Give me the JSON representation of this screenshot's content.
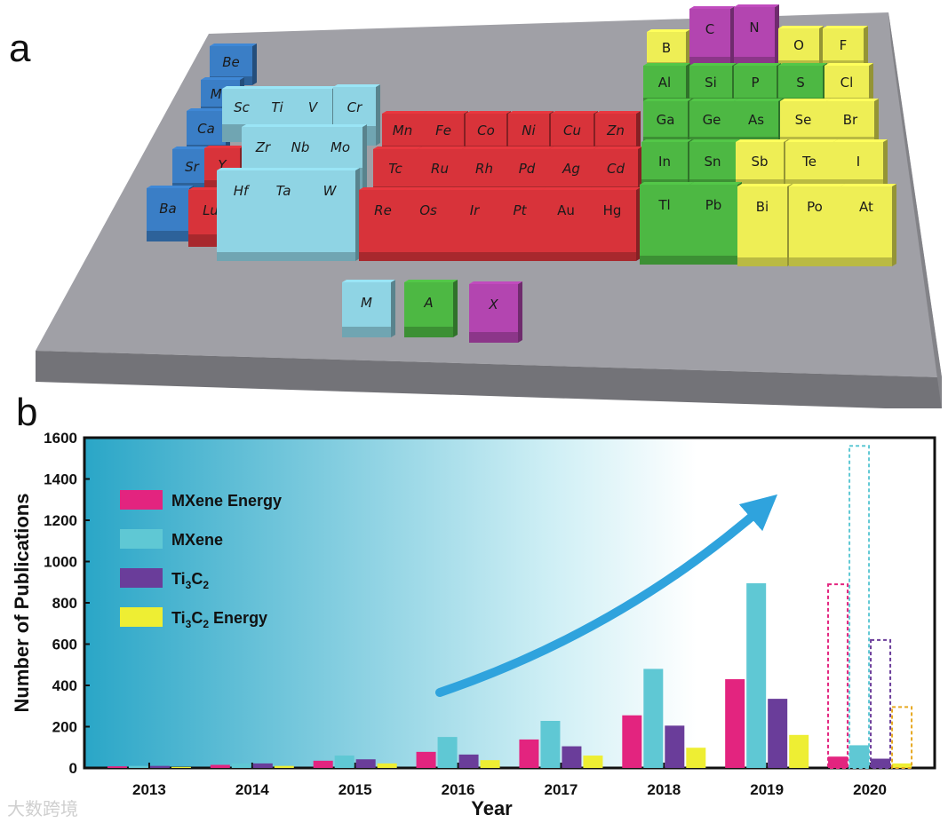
{
  "panel_a": {
    "label": "a",
    "colors": {
      "blue": "#3a7ec6",
      "lightblue": "#8fd4e4",
      "red": "#d8333a",
      "green": "#4db843",
      "yellow": "#eeee55",
      "magenta": "#b345b0",
      "base": "#a0a0a6"
    },
    "elements": [
      {
        "sym": "Be",
        "group": "blue"
      },
      {
        "sym": "Mg",
        "group": "blue"
      },
      {
        "sym": "Ca",
        "group": "blue"
      },
      {
        "sym": "Sr",
        "group": "blue"
      },
      {
        "sym": "Ba",
        "group": "blue"
      },
      {
        "sym": "Y",
        "group": "red"
      },
      {
        "sym": "Lu",
        "group": "red"
      },
      {
        "sym": "Sc",
        "group": "lightblue"
      },
      {
        "sym": "Ti",
        "group": "lightblue"
      },
      {
        "sym": "V",
        "group": "lightblue"
      },
      {
        "sym": "Cr",
        "group": "lightblue"
      },
      {
        "sym": "Zr",
        "group": "lightblue"
      },
      {
        "sym": "Nb",
        "group": "lightblue"
      },
      {
        "sym": "Mo",
        "group": "lightblue"
      },
      {
        "sym": "Hf",
        "group": "lightblue"
      },
      {
        "sym": "Ta",
        "group": "lightblue"
      },
      {
        "sym": "W",
        "group": "lightblue"
      },
      {
        "sym": "Mn",
        "group": "red"
      },
      {
        "sym": "Fe",
        "group": "red"
      },
      {
        "sym": "Co",
        "group": "red"
      },
      {
        "sym": "Ni",
        "group": "red"
      },
      {
        "sym": "Cu",
        "group": "red"
      },
      {
        "sym": "Zn",
        "group": "red"
      },
      {
        "sym": "Tc",
        "group": "red"
      },
      {
        "sym": "Ru",
        "group": "red"
      },
      {
        "sym": "Rh",
        "group": "red"
      },
      {
        "sym": "Pd",
        "group": "red"
      },
      {
        "sym": "Ag",
        "group": "red"
      },
      {
        "sym": "Cd",
        "group": "red"
      },
      {
        "sym": "Re",
        "group": "red"
      },
      {
        "sym": "Os",
        "group": "red"
      },
      {
        "sym": "Ir",
        "group": "red"
      },
      {
        "sym": "Pt",
        "group": "red"
      },
      {
        "sym": "Au",
        "group": "red"
      },
      {
        "sym": "Hg",
        "group": "red"
      },
      {
        "sym": "B",
        "group": "yellow"
      },
      {
        "sym": "C",
        "group": "magenta"
      },
      {
        "sym": "N",
        "group": "magenta"
      },
      {
        "sym": "O",
        "group": "yellow"
      },
      {
        "sym": "F",
        "group": "yellow"
      },
      {
        "sym": "Al",
        "group": "green"
      },
      {
        "sym": "Si",
        "group": "green"
      },
      {
        "sym": "P",
        "group": "green"
      },
      {
        "sym": "S",
        "group": "green"
      },
      {
        "sym": "Cl",
        "group": "yellow"
      },
      {
        "sym": "Ga",
        "group": "green"
      },
      {
        "sym": "Ge",
        "group": "green"
      },
      {
        "sym": "As",
        "group": "green"
      },
      {
        "sym": "Se",
        "group": "yellow"
      },
      {
        "sym": "Br",
        "group": "yellow"
      },
      {
        "sym": "In",
        "group": "green"
      },
      {
        "sym": "Sn",
        "group": "green"
      },
      {
        "sym": "Sb",
        "group": "yellow"
      },
      {
        "sym": "Te",
        "group": "yellow"
      },
      {
        "sym": "I",
        "group": "yellow"
      },
      {
        "sym": "Tl",
        "group": "green"
      },
      {
        "sym": "Pb",
        "group": "green"
      },
      {
        "sym": "Bi",
        "group": "yellow"
      },
      {
        "sym": "Po",
        "group": "yellow"
      },
      {
        "sym": "At",
        "group": "yellow"
      }
    ],
    "key": [
      {
        "sym": "M",
        "group": "lightblue"
      },
      {
        "sym": "A",
        "group": "green"
      },
      {
        "sym": "X",
        "group": "magenta"
      }
    ]
  },
  "panel_b": {
    "label": "b"
  },
  "chart_data": {
    "type": "bar",
    "xlabel": "Year",
    "ylabel": "Number of Publications",
    "ylim": [
      0,
      1600
    ],
    "yticks": [
      0,
      200,
      400,
      600,
      800,
      1000,
      1200,
      1400,
      1600
    ],
    "categories": [
      "2013",
      "2014",
      "2015",
      "2016",
      "2017",
      "2018",
      "2019",
      "2020"
    ],
    "series": [
      {
        "name": "MXene Energy",
        "color": "#e3247f",
        "values": [
          8,
          15,
          35,
          78,
          138,
          255,
          430,
          55
        ],
        "projected_2020": 890
      },
      {
        "name": "MXene",
        "color": "#5fc8d4",
        "values": [
          10,
          22,
          60,
          150,
          228,
          480,
          895,
          110
        ],
        "projected_2020": 1560
      },
      {
        "name": "Ti3C2",
        "color": "#6a3d9a",
        "values": [
          10,
          22,
          42,
          65,
          105,
          205,
          335,
          45
        ],
        "projected_2020": 620
      },
      {
        "name": "Ti3C2 Energy",
        "color": "#eeee33",
        "values": [
          5,
          10,
          22,
          38,
          60,
          98,
          160,
          22
        ],
        "projected_2020": 295
      }
    ],
    "legend": [
      {
        "text": "MXene Energy",
        "sub": "",
        "tail": ""
      },
      {
        "text": "MXene",
        "sub": "",
        "tail": ""
      },
      {
        "text": "Ti",
        "sub": "3",
        "mid": "C",
        "sub2": "2",
        "tail": ""
      },
      {
        "text": "Ti",
        "sub": "3",
        "mid": "C",
        "sub2": "2",
        "tail": " Energy"
      }
    ],
    "legend_placement": "top-left",
    "grid": false,
    "trend_arrow": "upward, blue"
  },
  "watermark": "大数跨境"
}
